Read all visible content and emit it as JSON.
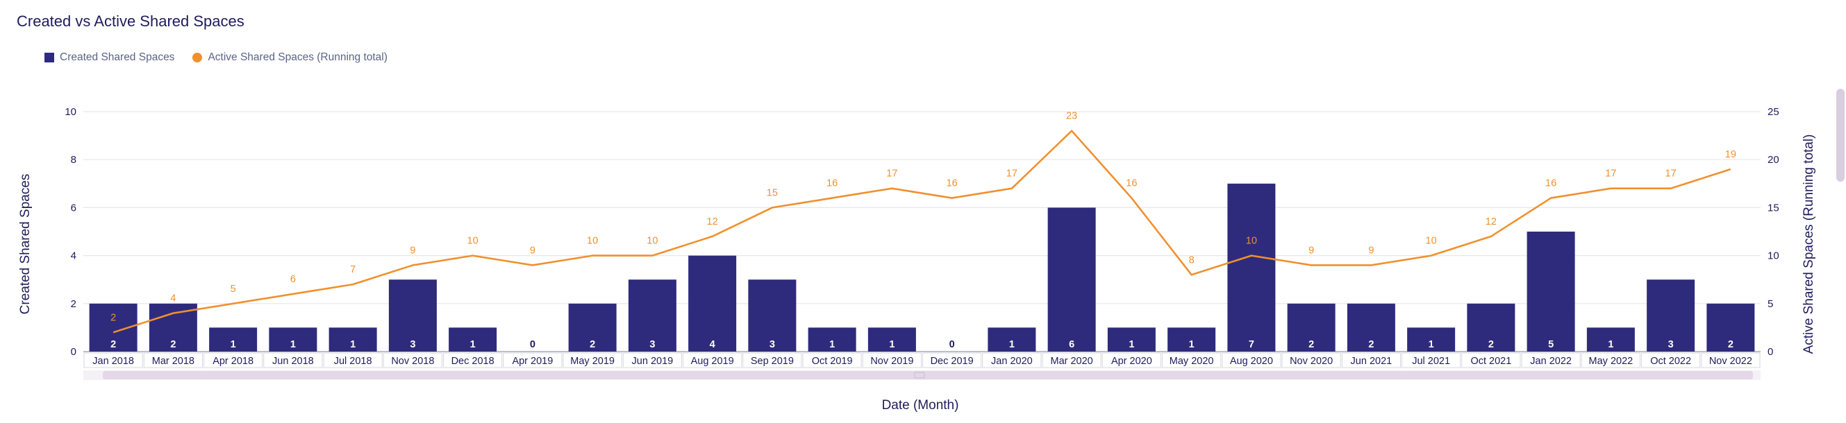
{
  "title": "Created vs Active Shared Spaces",
  "legend": {
    "bar_label": "Created Shared Spaces",
    "line_label": "Active Shared Spaces (Running total)"
  },
  "colors": {
    "bar": "#2e2b7d",
    "line": "#f0902e",
    "grid": "#e6e6ee",
    "axis_text": "#1f1b5c",
    "scroll": "#e4d8e8"
  },
  "chart_data": {
    "type": "bar+line",
    "xlabel": "Date (Month)",
    "ylabel_left": "Created Shared Spaces",
    "ylabel_right": "Active Shared Spaces (Running total)",
    "ylim_left": [
      0,
      10
    ],
    "ylim_right": [
      0,
      25
    ],
    "yticks_left": [
      0,
      2,
      4,
      6,
      8,
      10
    ],
    "yticks_right": [
      0,
      5,
      10,
      15,
      20,
      25
    ],
    "grid": true,
    "legend_position": "top-left",
    "categories": [
      "Jan 2018",
      "Mar 2018",
      "Apr 2018",
      "Jun 2018",
      "Jul 2018",
      "Nov 2018",
      "Dec 2018",
      "Apr 2019",
      "May 2019",
      "Jun 2019",
      "Aug 2019",
      "Sep 2019",
      "Oct 2019",
      "Nov 2019",
      "Dec 2019",
      "Jan 2020",
      "Mar 2020",
      "Apr 2020",
      "May 2020",
      "Aug 2020",
      "Nov 2020",
      "Jun 2021",
      "Jul 2021",
      "Oct 2021",
      "Jan 2022",
      "May 2022",
      "Oct 2022",
      "Nov 2022"
    ],
    "series": [
      {
        "name": "Created Shared Spaces",
        "type": "bar",
        "axis": "left",
        "values": [
          2,
          2,
          1,
          1,
          1,
          3,
          1,
          0,
          2,
          3,
          4,
          3,
          1,
          1,
          0,
          1,
          6,
          1,
          1,
          7,
          2,
          2,
          1,
          2,
          5,
          1,
          3,
          2
        ]
      },
      {
        "name": "Active Shared Spaces (Running total)",
        "type": "line",
        "axis": "right",
        "values": [
          2,
          4,
          5,
          6,
          7,
          9,
          10,
          9,
          10,
          10,
          12,
          15,
          16,
          17,
          16,
          17,
          23,
          16,
          8,
          10,
          9,
          9,
          10,
          12,
          16,
          17,
          17,
          19
        ]
      }
    ]
  }
}
